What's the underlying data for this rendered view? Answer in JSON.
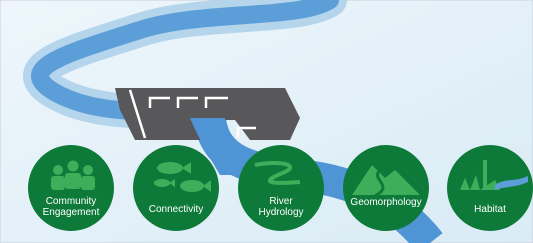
{
  "nodes": [
    {
      "lines": [
        "Community",
        "Engagement"
      ]
    },
    {
      "lines": [
        "Connectivity"
      ]
    },
    {
      "lines": [
        "River",
        "Hydrology"
      ]
    },
    {
      "lines": [
        "Geomorphology"
      ]
    },
    {
      "lines": [
        "Habitat"
      ]
    }
  ]
}
